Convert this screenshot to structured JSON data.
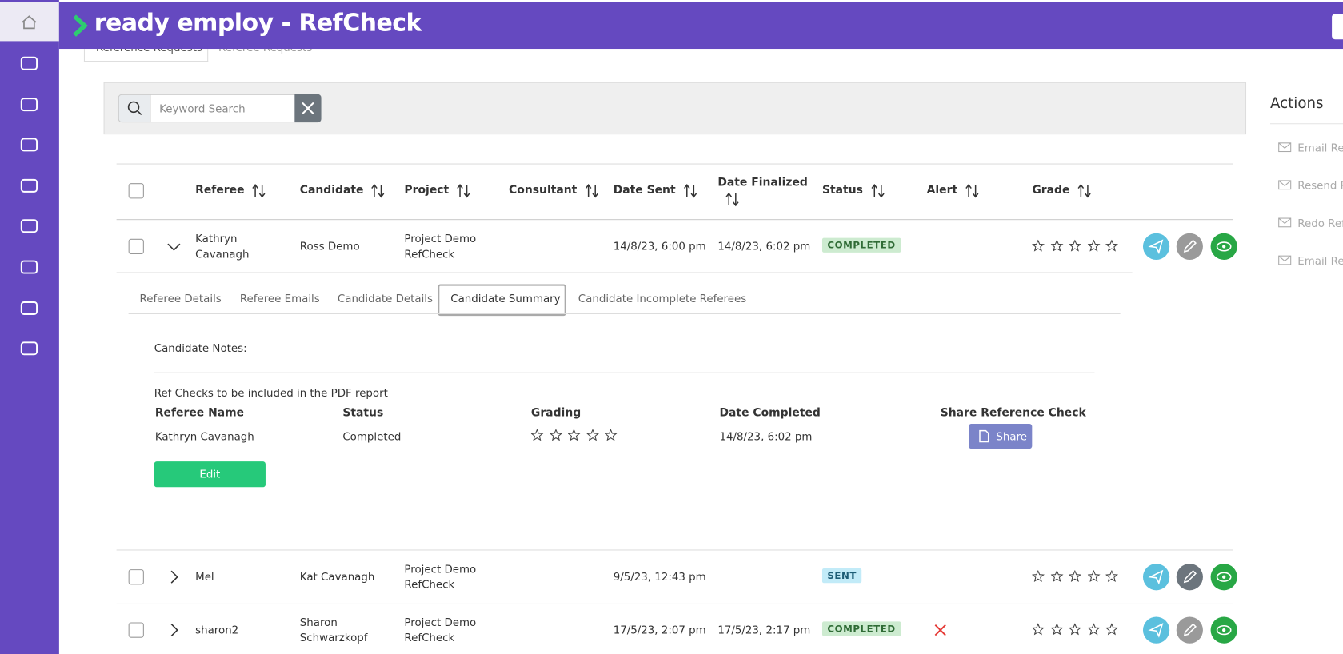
{
  "header": {
    "title": "ready employ - RefCheck"
  },
  "tabs": [
    "Reference Requests",
    "Referee Requests"
  ],
  "search": {
    "placeholder": "Keyword Search"
  },
  "actions": {
    "title": "Actions",
    "items": [
      "Email Ref",
      "Resend R",
      "Redo Ref",
      "Email Ref"
    ]
  },
  "table": {
    "columns": [
      "Referee",
      "Candidate",
      "Project",
      "Consultant",
      "Date Sent",
      "Date Finalized",
      "Status",
      "Alert",
      "Grade"
    ],
    "rows": [
      {
        "referee": "Kathryn Cavanagh",
        "candidate": "Ross Demo",
        "project": "Project Demo RefCheck",
        "date_sent": "14/8/23, 6:00 pm",
        "date_finalized": "14/8/23, 6:02 pm",
        "status": "COMPLETED",
        "expanded": true
      },
      {
        "referee": "Mel",
        "candidate": "Kat Cavanagh",
        "project": "Project Demo RefCheck",
        "date_sent": "9/5/23, 12:43 pm",
        "status": "SENT"
      },
      {
        "referee": "sharon2",
        "candidate": "Sharon Schwarzkopf",
        "project": "Project Demo RefCheck",
        "date_sent": "17/5/23, 2:07 pm",
        "date_finalized": "17/5/23, 2:17 pm",
        "status": "COMPLETED",
        "alert": true
      }
    ]
  },
  "detail": {
    "tabs": [
      "Referee Details",
      "Referee Emails",
      "Candidate Details",
      "Candidate Summary",
      "Candidate Incomplete Referees"
    ],
    "active_tab": 3,
    "notes_label": "Candidate Notes:",
    "pdf_label": "Ref Checks to be included in the PDF report",
    "columns": [
      "Referee Name",
      "Status",
      "Grading",
      "Date Completed",
      "Share Reference Check"
    ],
    "rows": [
      {
        "name": "Kathryn Cavanagh",
        "status": "Completed",
        "date": "14/8/23, 6:02 pm"
      }
    ],
    "share_button": "Share",
    "edit_button": "Edit"
  }
}
